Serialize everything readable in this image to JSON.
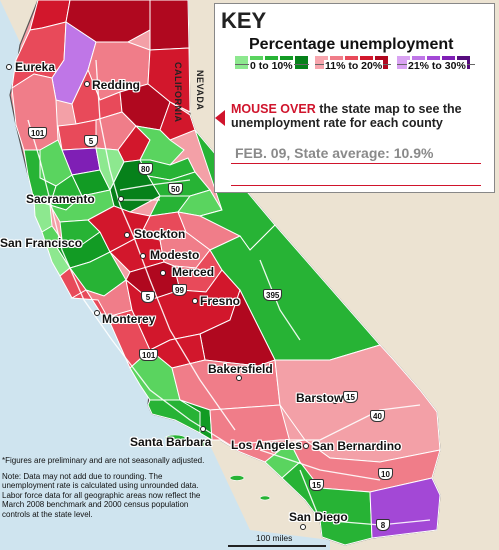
{
  "key": {
    "title": "KEY",
    "subtitle": "Percentage unemployment",
    "bands": [
      {
        "label": "0 to 10%",
        "colors": [
          "#8de88f",
          "#5ad45f",
          "#27b335",
          "#129b24",
          "#06811a"
        ]
      },
      {
        "label": "11% to 20%",
        "colors": [
          "#f7a5ad",
          "#f07d89",
          "#e84a5a",
          "#d2172c",
          "#b0081f"
        ]
      },
      {
        "label": "21% to 30%",
        "colors": [
          "#d9a3f2",
          "#bf76e7",
          "#a348d6",
          "#7f1fb5",
          "#560c7e"
        ]
      }
    ],
    "instruction_emphasis": "MOUSE OVER",
    "instruction_rest": "the state map to see the unemployment rate for each county",
    "state_average": "FEB. 09, State average: 10.9%"
  },
  "map": {
    "colors": {
      "ocean": "#cfe4ef",
      "neighbor_land": "#ece3d2",
      "state_default": "#f3a0a7",
      "county_border": "#ffffff",
      "state_outline": "#555555"
    },
    "state_labels": [
      "CALIFORNIA",
      "NEVADA"
    ],
    "cities": [
      "Eureka",
      "Redding",
      "Sacramento",
      "San Francisco",
      "Stockton",
      "Modesto",
      "Merced",
      "Fresno",
      "Monterey",
      "Bakersfield",
      "Barstow",
      "Santa Barbara",
      "Los Angeles",
      "San Bernardino",
      "San Diego"
    ],
    "highways": [
      "101",
      "5",
      "80",
      "50",
      "395",
      "99",
      "5",
      "101",
      "15",
      "40",
      "10",
      "15",
      "8"
    ],
    "scale_label": "100 miles"
  },
  "notes": {
    "line1": "*Figures are preliminary and are not seasonally adjusted.",
    "line2": "Note: Data may not add due to rounding. The unemployment rate is calculated using unrounded data.",
    "line3": "Labor force data for all geographic areas now reflect the March 2008 benchmark and 2000 census population controls at the state level."
  }
}
